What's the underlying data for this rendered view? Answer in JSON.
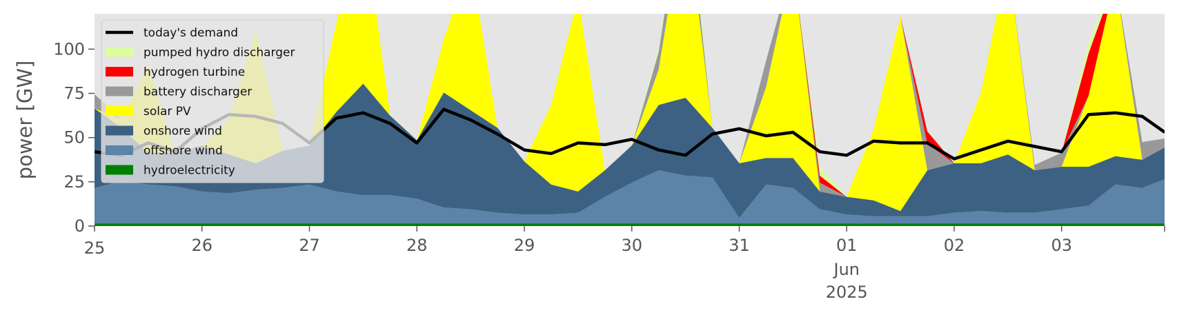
{
  "chart_data": {
    "type": "area",
    "xlabel": "",
    "ylabel": "power [GW]",
    "ylim": [
      0,
      120
    ],
    "yticks": [
      0,
      25,
      50,
      75,
      100
    ],
    "xlim": [
      "2025-05-25T00:00",
      "2025-06-03T23:00"
    ],
    "xticks": [
      {
        "date": "2025-05-25",
        "label": "25"
      },
      {
        "date": "2025-05-26",
        "label": "26"
      },
      {
        "date": "2025-05-27",
        "label": "27"
      },
      {
        "date": "2025-05-28",
        "label": "28"
      },
      {
        "date": "2025-05-29",
        "label": "29"
      },
      {
        "date": "2025-05-30",
        "label": "30"
      },
      {
        "date": "2025-05-31",
        "label": "31"
      },
      {
        "date": "2025-06-01",
        "label": "01",
        "sublabel": "Jun",
        "sublabel2": "2025"
      },
      {
        "date": "2025-06-02",
        "label": "02"
      },
      {
        "date": "2025-06-03",
        "label": "03"
      }
    ],
    "legend_placement": "top-left",
    "grid": false,
    "background": "#e5e5e5",
    "x_day_offsets": [
      0,
      0.25,
      0.5,
      0.75,
      1,
      1.25,
      1.5,
      1.75,
      2,
      2.25,
      2.5,
      2.75,
      3,
      3.25,
      3.5,
      3.75,
      4,
      4.25,
      4.5,
      4.75,
      5,
      5.25,
      5.5,
      5.75,
      6,
      6.25,
      6.5,
      6.75,
      7,
      7.25,
      7.5,
      7.75,
      8,
      8.25,
      8.5,
      8.75,
      9,
      9.25,
      9.5,
      9.75,
      9.96
    ],
    "series": [
      {
        "name": "hydroelectricity",
        "color": "#008000",
        "values": [
          1.5,
          1.5,
          1.5,
          1.5,
          1.5,
          1.5,
          1.5,
          1.5,
          1.5,
          1.5,
          1.5,
          1.5,
          1.5,
          1.5,
          1.5,
          1.5,
          1.5,
          1.5,
          1.5,
          1.5,
          1.5,
          1.5,
          1.5,
          1.5,
          1.5,
          1.5,
          1.5,
          1.5,
          1.5,
          1.5,
          1.5,
          1.5,
          1.5,
          1.5,
          1.5,
          1.5,
          1.5,
          1.5,
          1.5,
          1.5,
          1.5
        ]
      },
      {
        "name": "offshore wind",
        "color": "#5b84a8",
        "values": [
          20,
          24,
          22,
          21,
          18,
          17,
          19,
          20,
          22,
          18,
          16,
          16,
          14,
          9,
          8,
          6,
          5,
          5,
          6,
          15,
          23,
          30,
          27,
          26,
          3,
          22,
          20,
          8,
          5,
          4,
          4,
          4,
          6,
          7,
          6,
          6,
          8,
          10,
          22,
          20,
          25
        ]
      },
      {
        "name": "onshore wind",
        "color": "#3d6182",
        "values": [
          45,
          30,
          18,
          19,
          26,
          22,
          15,
          21,
          22,
          45,
          63,
          45,
          33,
          65,
          56,
          48,
          30,
          17,
          12,
          15,
          21,
          37,
          44,
          28,
          31,
          15,
          17,
          10,
          10,
          9,
          3,
          26,
          28,
          27,
          33,
          24,
          24,
          22,
          16,
          16,
          18
        ]
      },
      {
        "name": "solar PV",
        "color": "#ffff00",
        "values": [
          0,
          5,
          50,
          0,
          0,
          20,
          75,
          0,
          0,
          50,
          95,
          0,
          0,
          30,
          85,
          0,
          0,
          45,
          110,
          0,
          0,
          20,
          110,
          0,
          0,
          40,
          110,
          0,
          0,
          40,
          110,
          0,
          0,
          40,
          110,
          0,
          0,
          40,
          100,
          0,
          0
        ]
      },
      {
        "name": "battery discharger",
        "color": "#999999",
        "values": [
          8,
          0,
          0,
          0,
          0,
          0,
          0,
          0,
          0,
          0,
          0,
          0,
          0,
          0,
          0,
          0,
          0,
          0,
          0,
          0,
          0,
          10,
          15,
          0,
          0,
          15,
          0,
          5,
          0,
          0,
          0,
          15,
          0,
          0,
          0,
          3,
          8,
          0,
          0,
          10,
          5
        ]
      },
      {
        "name": "hydrogen turbine",
        "color": "#ff0000",
        "values": [
          0,
          0,
          0,
          0,
          0,
          0,
          0,
          0,
          0,
          0,
          0,
          0,
          0,
          0,
          0,
          0,
          0,
          0,
          0,
          0,
          0,
          0,
          0,
          0,
          0,
          0,
          0,
          4,
          0,
          0,
          0,
          7,
          0,
          0,
          0,
          0,
          0,
          24,
          0,
          0,
          0
        ]
      },
      {
        "name": "pumped hydro discharger",
        "color": "#ddfca0",
        "values": [
          0,
          0,
          0,
          0,
          0,
          0,
          0,
          0,
          0,
          0,
          0,
          0,
          0,
          0,
          0,
          0,
          0,
          0,
          0,
          0,
          0,
          2,
          8,
          0,
          0,
          0,
          0,
          5,
          0,
          0,
          0,
          0,
          0,
          0,
          0,
          0,
          0,
          6,
          0,
          0,
          0
        ]
      }
    ],
    "demand": {
      "name": "today's demand",
      "color": "#000000",
      "values": [
        42,
        40,
        47,
        42,
        55,
        63,
        62,
        58,
        47,
        61,
        64,
        58,
        47,
        66,
        60,
        52,
        43,
        41,
        47,
        46,
        49,
        43,
        40,
        52,
        55,
        51,
        53,
        42,
        40,
        48,
        47,
        47,
        38,
        43,
        48,
        45,
        42,
        63,
        64,
        62,
        53
      ]
    },
    "legend_order": [
      "today's demand",
      "pumped hydro discharger",
      "hydrogen turbine",
      "battery discharger",
      "solar PV",
      "onshore wind",
      "offshore wind",
      "hydroelectricity"
    ]
  }
}
